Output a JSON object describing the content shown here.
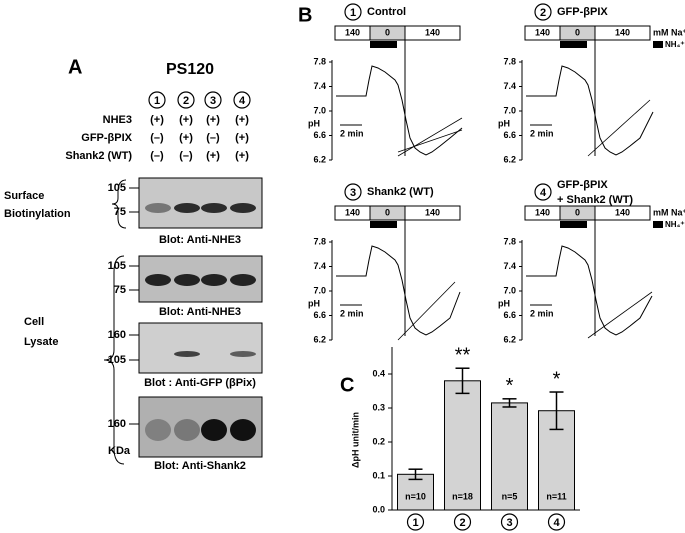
{
  "panel_a": {
    "letter": "A",
    "title": "PS120",
    "lanes": [
      "1",
      "2",
      "3",
      "4"
    ],
    "rows": [
      {
        "label": "NHE3",
        "signs": [
          "(+)",
          "(+)",
          "(+)",
          "(+)"
        ]
      },
      {
        "label": "GFP-βPIX",
        "signs": [
          "(–)",
          "(+)",
          "(–)",
          "(+)"
        ]
      },
      {
        "label": "Shank2 (WT)",
        "signs": [
          "(–)",
          "(–)",
          "(+)",
          "(+)"
        ]
      }
    ],
    "groups": [
      [
        "Surface",
        "Biotinylation"
      ],
      [
        "Cell",
        "Lysate"
      ]
    ],
    "blots": [
      {
        "markers": [
          "105",
          "75"
        ],
        "label": "Blot: Anti-NHE3"
      },
      {
        "markers": [
          "105",
          "75"
        ],
        "label": "Blot: Anti-NHE3"
      },
      {
        "markers": [
          "160",
          "105"
        ],
        "label": "Blot : Anti-GFP (βPix)"
      },
      {
        "markers": [
          "160"
        ],
        "label": "Blot: Anti-Shank2"
      }
    ],
    "unit": "KDa"
  },
  "panel_b": {
    "letter": "B",
    "panels": [
      {
        "number": "1",
        "title": [
          "Control"
        ]
      },
      {
        "number": "2",
        "title": [
          "GFP-βPIX"
        ]
      },
      {
        "number": "3",
        "title": [
          "Shank2 (WT)"
        ]
      },
      {
        "number": "4",
        "title": [
          "GFP-βPIX",
          "+ Shank2 (WT)"
        ]
      }
    ],
    "bath": [
      "140",
      "0",
      "140"
    ],
    "na_label": "mM Na⁺",
    "nh4_label": "NH₄⁺",
    "y_label": "pH",
    "yticks": [
      "7.8",
      "7.4",
      "7.0",
      "6.6",
      "6.2"
    ],
    "scale_bar": "2 min"
  },
  "chart_data": {
    "type": "bar",
    "letter": "C",
    "y_label": "ΔpH unit/min",
    "categories": [
      "1",
      "2",
      "3",
      "4"
    ],
    "values": [
      0.105,
      0.38,
      0.315,
      0.292
    ],
    "errors": [
      0.015,
      0.037,
      0.012,
      0.055
    ],
    "annotations": [
      "n=10",
      "n=18",
      "n=5",
      "n=11"
    ],
    "significance": [
      null,
      "**",
      "*",
      "*"
    ],
    "color": "#d3d3d3",
    "ylim": [
      0,
      0.45
    ],
    "yticks": [
      {
        "value": 0,
        "label": "0.0"
      },
      0.1,
      0.2,
      0.3,
      0.4
    ]
  }
}
